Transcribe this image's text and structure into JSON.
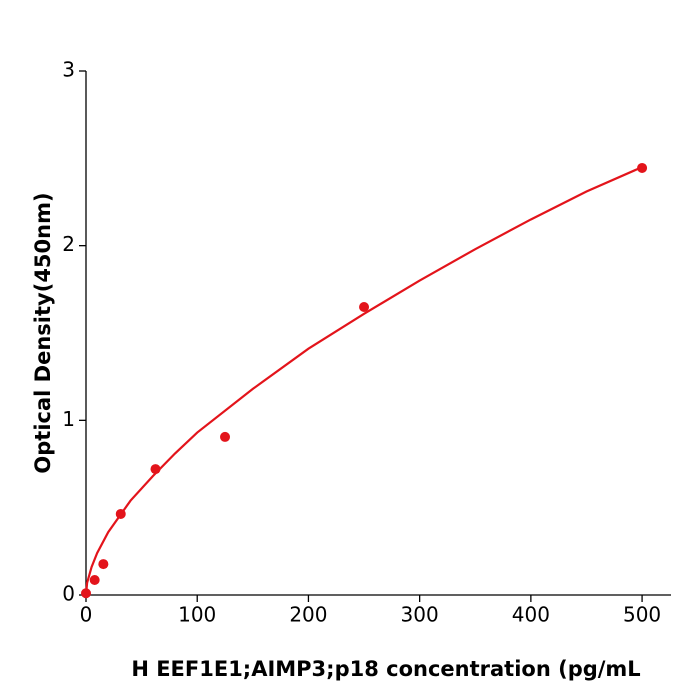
{
  "chart_data": {
    "type": "scatter",
    "x_label": "H  EEF1E1;AIMP3;p18 concentration (pg/mL",
    "y_label": "Optical Density(450nm)",
    "xlim": [
      0,
      526
    ],
    "ylim": [
      0,
      3
    ],
    "xticks": [
      0,
      100,
      200,
      300,
      400,
      500
    ],
    "yticks": [
      0,
      1,
      2,
      3
    ],
    "grid": false,
    "series": [
      {
        "mode": "markers",
        "color": "#e3141b",
        "x": [
          0,
          7.8,
          15.6,
          31.25,
          62.5,
          125,
          250,
          500
        ],
        "values": [
          0.01,
          0.086,
          0.177,
          0.464,
          0.721,
          0.905,
          1.649,
          2.445
        ]
      },
      {
        "mode": "line",
        "color": "#e3141b",
        "x": [
          0,
          1,
          5,
          10,
          20,
          40,
          60,
          80,
          100,
          150,
          200,
          250,
          300,
          350,
          400,
          450,
          500
        ],
        "values": [
          0,
          0.07,
          0.16,
          0.24,
          0.36,
          0.54,
          0.68,
          0.81,
          0.93,
          1.18,
          1.41,
          1.61,
          1.8,
          1.98,
          2.15,
          2.31,
          2.45
        ]
      }
    ]
  }
}
